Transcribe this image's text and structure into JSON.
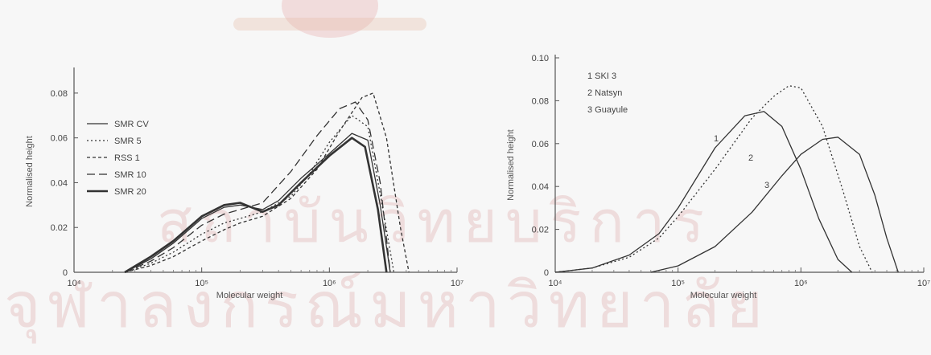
{
  "watermark": {
    "title": "สถาบันวิทยบริการ",
    "subtitle": "จุฬาลงกรณ์มหาวิทยาลัย"
  },
  "chart_data": [
    {
      "type": "line",
      "xlabel": "Molecular weight",
      "ylabel": "Normalised height",
      "xscale": "log",
      "xlim": [
        10000,
        10000000
      ],
      "ylim": [
        0,
        0.09
      ],
      "x_ticks": [
        "10⁴",
        "10⁵",
        "10⁶",
        "10⁷"
      ],
      "y_ticks": [
        "0",
        "0.02",
        "0.04",
        "0.06",
        "0.08"
      ],
      "legend_position": "top-left",
      "series": [
        {
          "name": "SMR CV",
          "style": "solid",
          "x": [
            25000,
            40000,
            60000,
            100000,
            150000,
            200000,
            300000,
            400000,
            600000,
            1000000,
            1500000,
            2000000,
            2500000,
            3000000
          ],
          "y": [
            0,
            0.006,
            0.013,
            0.024,
            0.029,
            0.03,
            0.028,
            0.032,
            0.042,
            0.053,
            0.062,
            0.059,
            0.03,
            0.0
          ]
        },
        {
          "name": "SMR 5",
          "style": "dotted",
          "x": [
            25000,
            40000,
            60000,
            100000,
            150000,
            200000,
            300000,
            500000,
            700000,
            1000000,
            1500000,
            2000000,
            2500000,
            3200000
          ],
          "y": [
            0,
            0.004,
            0.009,
            0.017,
            0.022,
            0.024,
            0.027,
            0.034,
            0.044,
            0.058,
            0.07,
            0.065,
            0.035,
            0.0
          ]
        },
        {
          "name": "RSS 1",
          "style": "short-dash",
          "x": [
            25000,
            40000,
            60000,
            100000,
            150000,
            200000,
            300000,
            500000,
            800000,
            1200000,
            1800000,
            2200000,
            2800000,
            3600000,
            4200000
          ],
          "y": [
            0,
            0.003,
            0.007,
            0.014,
            0.019,
            0.022,
            0.025,
            0.033,
            0.046,
            0.063,
            0.078,
            0.08,
            0.06,
            0.02,
            0.0
          ]
        },
        {
          "name": "SMR 10",
          "style": "long-dash",
          "x": [
            25000,
            40000,
            60000,
            100000,
            150000,
            200000,
            300000,
            500000,
            800000,
            1200000,
            1600000,
            2000000,
            2500000,
            3000000
          ],
          "y": [
            0,
            0.005,
            0.011,
            0.021,
            0.026,
            0.028,
            0.031,
            0.045,
            0.061,
            0.073,
            0.076,
            0.068,
            0.04,
            0.0
          ]
        },
        {
          "name": "SMR 20",
          "style": "solid-thick",
          "x": [
            25000,
            40000,
            60000,
            100000,
            150000,
            200000,
            300000,
            400000,
            600000,
            1000000,
            1500000,
            1900000,
            2400000,
            2800000
          ],
          "y": [
            0,
            0.007,
            0.014,
            0.025,
            0.03,
            0.031,
            0.027,
            0.03,
            0.04,
            0.052,
            0.06,
            0.056,
            0.028,
            0.0
          ]
        }
      ]
    },
    {
      "type": "line",
      "xlabel": "Molecular weight",
      "ylabel": "Normalised height",
      "xscale": "log",
      "xlim": [
        10000,
        10000000
      ],
      "ylim": [
        0,
        0.1
      ],
      "x_ticks": [
        "10⁴",
        "10⁵",
        "10⁶",
        "10⁷"
      ],
      "y_ticks": [
        "0",
        "0.02",
        "0.04",
        "0.06",
        "0.08",
        "0.10"
      ],
      "legend_position": "top-left",
      "annotations": [
        "1",
        "2",
        "3"
      ],
      "series": [
        {
          "name": "1 SKI 3",
          "style": "solid",
          "x": [
            10000,
            20000,
            40000,
            70000,
            100000,
            200000,
            350000,
            500000,
            700000,
            1000000,
            1400000,
            2000000,
            2600000
          ],
          "y": [
            0,
            0.002,
            0.008,
            0.018,
            0.03,
            0.058,
            0.073,
            0.075,
            0.068,
            0.048,
            0.025,
            0.006,
            0.0
          ]
        },
        {
          "name": "2 Natsyn",
          "style": "dotted",
          "x": [
            10000,
            20000,
            40000,
            70000,
            100000,
            200000,
            400000,
            600000,
            800000,
            1000000,
            1500000,
            2200000,
            3000000,
            3800000
          ],
          "y": [
            0,
            0.002,
            0.007,
            0.016,
            0.026,
            0.048,
            0.072,
            0.082,
            0.087,
            0.086,
            0.068,
            0.038,
            0.012,
            0.0
          ]
        },
        {
          "name": "3 Guayule",
          "style": "solid",
          "x": [
            60000,
            100000,
            200000,
            400000,
            700000,
            1000000,
            1500000,
            2000000,
            3000000,
            4000000,
            5000000,
            6200000
          ],
          "y": [
            0,
            0.003,
            0.012,
            0.028,
            0.045,
            0.055,
            0.062,
            0.063,
            0.055,
            0.036,
            0.016,
            0.0
          ]
        }
      ]
    }
  ]
}
